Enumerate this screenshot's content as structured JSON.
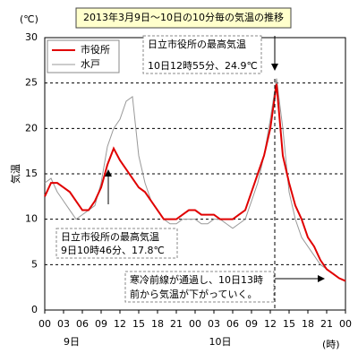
{
  "chart_data": {
    "type": "line",
    "title": "2013年3月9日～10日の10分毎の気温の推移",
    "y_unit": "(℃)",
    "x_unit": "(時)",
    "y_label": "気温",
    "x": [
      0,
      1,
      2,
      3,
      4,
      5,
      6,
      7,
      8,
      9,
      10,
      11,
      12,
      13,
      14,
      15,
      16,
      17,
      18,
      19,
      20,
      21,
      22,
      23,
      24,
      25,
      26,
      27,
      28,
      29,
      30,
      31,
      32,
      33,
      34,
      35,
      36,
      37,
      38,
      39,
      40,
      41,
      42,
      43,
      44,
      45,
      46,
      47,
      48
    ],
    "series": [
      {
        "name": "市役所",
        "color": "#e00000",
        "values": [
          12.5,
          14,
          14,
          13.5,
          13,
          12,
          11,
          11,
          12,
          13.5,
          16,
          17.8,
          16.5,
          15.5,
          14.5,
          13.5,
          13,
          12,
          11,
          10,
          10,
          10,
          10.5,
          11,
          11,
          10.5,
          10.5,
          10.5,
          10,
          10,
          10,
          10.5,
          11,
          13,
          15,
          17,
          20,
          24.9,
          17,
          14,
          11.5,
          10,
          8,
          7,
          5.5,
          4.5,
          4,
          3.5,
          3.2
        ]
      },
      {
        "name": "水戸",
        "color": "#999999",
        "values": [
          14,
          14.5,
          13,
          12,
          11,
          10,
          10.5,
          11,
          11.5,
          14,
          18,
          20,
          21,
          23,
          23.5,
          17,
          14,
          12,
          11,
          10,
          9.5,
          9.5,
          10,
          10,
          10,
          9.5,
          9.5,
          10,
          10,
          9.5,
          9,
          9.5,
          10,
          12,
          14,
          17,
          21,
          25.5,
          20,
          13,
          10,
          8,
          7,
          6,
          5,
          4.5,
          4,
          3.5,
          3.2
        ]
      }
    ],
    "xlim": [
      0,
      48
    ],
    "xticks": [
      {
        "value": 0,
        "label": "00"
      },
      {
        "value": 3,
        "label": "03"
      },
      {
        "value": 6,
        "label": "06"
      },
      {
        "value": 9,
        "label": "09"
      },
      {
        "value": 12,
        "label": "12"
      },
      {
        "value": 15,
        "label": "15"
      },
      {
        "value": 18,
        "label": "18"
      },
      {
        "value": 21,
        "label": "21"
      },
      {
        "value": 24,
        "label": "00"
      },
      {
        "value": 27,
        "label": "03"
      },
      {
        "value": 30,
        "label": "06"
      },
      {
        "value": 33,
        "label": "09"
      },
      {
        "value": 36,
        "label": "12"
      },
      {
        "value": 39,
        "label": "15"
      },
      {
        "value": 42,
        "label": "18"
      },
      {
        "value": 45,
        "label": "21"
      },
      {
        "value": 48,
        "label": "00"
      }
    ],
    "day_labels": [
      "9日",
      "10日"
    ],
    "ylim": [
      0,
      30
    ],
    "yticks": [
      0,
      5,
      10,
      15,
      20,
      25,
      30
    ],
    "grid": true,
    "annotations": [
      [
        "日立市役所の最高気温",
        "10日12時55分、24.9℃"
      ],
      [
        "日立市役所の最高気温",
        "9日10時46分、17.8℃"
      ],
      [
        "寒冷前線が通過し、10日13時",
        "前から気温が下がっていく。"
      ]
    ]
  }
}
